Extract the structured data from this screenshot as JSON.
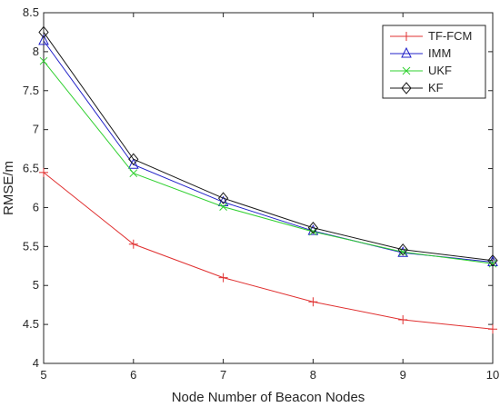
{
  "chart_data": {
    "type": "line",
    "title": "",
    "xlabel": "Node Number of Beacon Nodes",
    "ylabel": "RMSE/m",
    "x": [
      5,
      6,
      7,
      8,
      9,
      10
    ],
    "xlim": [
      5,
      10
    ],
    "ylim": [
      4,
      8.5
    ],
    "xticks": [
      "5",
      "6",
      "7",
      "8",
      "9",
      "10"
    ],
    "yticks": [
      "4",
      "4.5",
      "5",
      "5.5",
      "6",
      "6.5",
      "7",
      "7.5",
      "8",
      "8.5"
    ],
    "grid": false,
    "legend_position": "top-right",
    "series": [
      {
        "name": "TF-FCM",
        "values": [
          6.45,
          5.53,
          5.1,
          4.79,
          4.56,
          4.44
        ],
        "color": "#e03030",
        "marker": "plus"
      },
      {
        "name": "IMM",
        "values": [
          8.14,
          6.55,
          6.07,
          5.7,
          5.42,
          5.3
        ],
        "color": "#2020c8",
        "marker": "triangle"
      },
      {
        "name": "UKF",
        "values": [
          7.88,
          6.44,
          6.01,
          5.69,
          5.43,
          5.28
        ],
        "color": "#30d030",
        "marker": "x"
      },
      {
        "name": "KF",
        "values": [
          8.25,
          6.62,
          6.12,
          5.74,
          5.46,
          5.32
        ],
        "color": "#1a1a1a",
        "marker": "diamond"
      }
    ]
  }
}
